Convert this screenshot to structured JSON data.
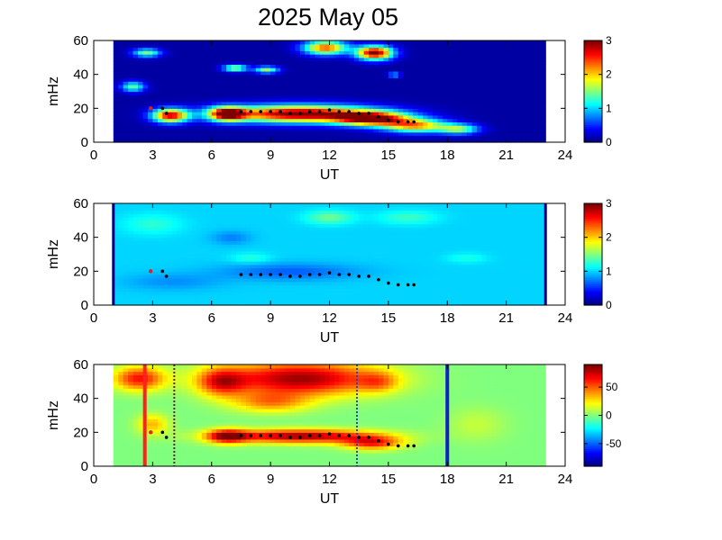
{
  "title": "2025 May 05",
  "colors": {
    "axis": "#000000",
    "background": "#ffffff",
    "red_line": "#ff2020",
    "blue_line": "#1020c8",
    "track_marker": "#000000",
    "first_marker": "#e02020"
  },
  "chart_data": [
    {
      "type": "heatmap",
      "name_hint": "top panel",
      "xlabel": "UT",
      "ylabel": "mHz",
      "xlim": [
        0,
        24
      ],
      "ylim": [
        0,
        60
      ],
      "xticks": [
        "0",
        "3",
        "6",
        "9",
        "12",
        "15",
        "18",
        "21",
        "24"
      ],
      "yticks": [
        "0",
        "20",
        "40",
        "60"
      ],
      "colorbar": {
        "range": [
          0,
          3
        ],
        "ticks": [
          "0",
          "1",
          "2",
          "3"
        ]
      },
      "data_extent_ut": [
        1.0,
        23.0
      ],
      "background_level": 0.1,
      "blobs": [
        {
          "t": 3.9,
          "f": 16,
          "rt": 0.9,
          "rf": 4,
          "v": 2.6
        },
        {
          "t": 2.0,
          "f": 33,
          "rt": 0.6,
          "rf": 3,
          "v": 1.3
        },
        {
          "t": 2.7,
          "f": 53,
          "rt": 0.7,
          "rf": 2.5,
          "v": 1.4
        },
        {
          "t": 6.8,
          "f": 17,
          "rt": 0.9,
          "rf": 4,
          "v": 2.6
        },
        {
          "t": 10.5,
          "f": 17,
          "rt": 3.8,
          "rf": 5,
          "v": 3.0
        },
        {
          "t": 14.2,
          "f": 14,
          "rt": 1.8,
          "rf": 4,
          "v": 2.6
        },
        {
          "t": 16.4,
          "f": 10,
          "rt": 1.6,
          "rf": 4,
          "v": 2.0
        },
        {
          "t": 18.6,
          "f": 8,
          "rt": 1.0,
          "rf": 3,
          "v": 1.4
        },
        {
          "t": 7.2,
          "f": 44,
          "rt": 0.6,
          "rf": 2,
          "v": 1.6
        },
        {
          "t": 8.8,
          "f": 43,
          "rt": 0.6,
          "rf": 2,
          "v": 1.5
        },
        {
          "t": 11.8,
          "f": 56,
          "rt": 1.1,
          "rf": 4,
          "v": 2.3
        },
        {
          "t": 14.3,
          "f": 53,
          "rt": 0.9,
          "rf": 4,
          "v": 3.0
        },
        {
          "t": 15.3,
          "f": 40,
          "rt": 0.3,
          "rf": 1.2,
          "v": 1.2
        }
      ],
      "markers_red": [
        {
          "x": 2.9,
          "y": 20
        }
      ],
      "track": [
        {
          "x": 3.5,
          "y": 20
        },
        {
          "x": 3.7,
          "y": 17
        },
        {
          "x": 7.5,
          "y": 18
        },
        {
          "x": 8.0,
          "y": 18
        },
        {
          "x": 8.5,
          "y": 18
        },
        {
          "x": 9.0,
          "y": 18
        },
        {
          "x": 9.5,
          "y": 18
        },
        {
          "x": 10.0,
          "y": 17
        },
        {
          "x": 10.5,
          "y": 17
        },
        {
          "x": 11.0,
          "y": 18
        },
        {
          "x": 11.5,
          "y": 18
        },
        {
          "x": 12.0,
          "y": 19
        },
        {
          "x": 12.5,
          "y": 18
        },
        {
          "x": 13.0,
          "y": 18
        },
        {
          "x": 13.5,
          "y": 17
        },
        {
          "x": 14.0,
          "y": 17
        },
        {
          "x": 14.5,
          "y": 15
        },
        {
          "x": 15.0,
          "y": 13
        },
        {
          "x": 15.5,
          "y": 12
        },
        {
          "x": 16.0,
          "y": 12
        },
        {
          "x": 16.3,
          "y": 12
        }
      ]
    },
    {
      "type": "heatmap",
      "name_hint": "middle panel",
      "xlabel": "UT",
      "ylabel": "mHz",
      "xlim": [
        0,
        24
      ],
      "ylim": [
        0,
        60
      ],
      "xticks": [
        "0",
        "3",
        "6",
        "9",
        "12",
        "15",
        "18",
        "21",
        "24"
      ],
      "yticks": [
        "0",
        "20",
        "40",
        "60"
      ],
      "colorbar": {
        "range": [
          0,
          3
        ],
        "ticks": [
          "0",
          "1",
          "2",
          "3"
        ]
      },
      "data_extent_ut": [
        1.0,
        23.0
      ],
      "background_level": 1.0,
      "edge_lines_ut": [
        1.0,
        23.0
      ],
      "blobs": [
        {
          "t": 10,
          "f": 20,
          "rt": 3.5,
          "rf": 5,
          "v": -0.35
        },
        {
          "t": 4,
          "f": 14,
          "rt": 2.5,
          "rf": 5,
          "v": -0.2
        },
        {
          "t": 3,
          "f": 48,
          "rt": 1.5,
          "rf": 6,
          "v": 0.25
        },
        {
          "t": 12,
          "f": 52,
          "rt": 1.2,
          "rf": 4,
          "v": 0.45
        },
        {
          "t": 16,
          "f": 52,
          "rt": 1.5,
          "rf": 4,
          "v": 0.3
        },
        {
          "t": 8,
          "f": 28,
          "rt": 1.0,
          "rf": 3,
          "v": 0.25
        },
        {
          "t": 19,
          "f": 28,
          "rt": 1.0,
          "rf": 3,
          "v": 0.2
        },
        {
          "t": 7,
          "f": 40,
          "rt": 1.0,
          "rf": 4,
          "v": -0.25
        }
      ],
      "markers_red": [
        {
          "x": 2.9,
          "y": 20
        }
      ],
      "track": [
        {
          "x": 3.5,
          "y": 20
        },
        {
          "x": 3.7,
          "y": 17
        },
        {
          "x": 7.5,
          "y": 18
        },
        {
          "x": 8.0,
          "y": 18
        },
        {
          "x": 8.5,
          "y": 18
        },
        {
          "x": 9.0,
          "y": 18
        },
        {
          "x": 9.5,
          "y": 18
        },
        {
          "x": 10.0,
          "y": 17
        },
        {
          "x": 10.5,
          "y": 17
        },
        {
          "x": 11.0,
          "y": 18
        },
        {
          "x": 11.5,
          "y": 18
        },
        {
          "x": 12.0,
          "y": 19
        },
        {
          "x": 12.5,
          "y": 18
        },
        {
          "x": 13.0,
          "y": 18
        },
        {
          "x": 13.5,
          "y": 17
        },
        {
          "x": 14.0,
          "y": 17
        },
        {
          "x": 14.5,
          "y": 15
        },
        {
          "x": 15.0,
          "y": 13
        },
        {
          "x": 15.5,
          "y": 12
        },
        {
          "x": 16.0,
          "y": 12
        },
        {
          "x": 16.3,
          "y": 12
        }
      ]
    },
    {
      "type": "heatmap",
      "name_hint": "bottom panel",
      "xlabel": "UT",
      "ylabel": "mHz",
      "xlim": [
        0,
        24
      ],
      "ylim": [
        0,
        60
      ],
      "xticks": [
        "0",
        "3",
        "6",
        "9",
        "12",
        "15",
        "18",
        "21",
        "24"
      ],
      "yticks": [
        "0",
        "20",
        "40",
        "60"
      ],
      "colorbar": {
        "range": [
          -90,
          90
        ],
        "ticks": [
          "50",
          "0",
          "-50"
        ],
        "tick_values": [
          50,
          0,
          -50
        ]
      },
      "data_extent_ut": [
        1.0,
        23.0
      ],
      "background_level": 0,
      "blobs": [
        {
          "t": 10.5,
          "f": 52,
          "rt": 4.0,
          "rf": 10,
          "v": 85
        },
        {
          "t": 9.0,
          "f": 38,
          "rt": 2.0,
          "rf": 6,
          "v": 40
        },
        {
          "t": 6.5,
          "f": 50,
          "rt": 1.2,
          "rf": 8,
          "v": 55
        },
        {
          "t": 10.5,
          "f": 18,
          "rt": 3.8,
          "rf": 4,
          "v": 85
        },
        {
          "t": 6.8,
          "f": 18,
          "rt": 1.0,
          "rf": 4,
          "v": 75
        },
        {
          "t": 14.2,
          "f": 14,
          "rt": 1.5,
          "rf": 4,
          "v": 60
        },
        {
          "t": 2.3,
          "f": 52,
          "rt": 1.3,
          "rf": 7,
          "v": 65
        },
        {
          "t": 3.0,
          "f": 25,
          "rt": 0.8,
          "rf": 6,
          "v": 35
        },
        {
          "t": 14.5,
          "f": 50,
          "rt": 1.0,
          "rf": 6,
          "v": 30
        },
        {
          "t": 19.5,
          "f": 25,
          "rt": 1.5,
          "rf": 10,
          "v": 12
        }
      ],
      "vlines": [
        {
          "x": 2.6,
          "color": "#ff2020",
          "width": 4,
          "dash": ""
        },
        {
          "x": 4.1,
          "color": "#7a1540",
          "width": 2,
          "dash": "2,2"
        },
        {
          "x": 13.4,
          "color": "#3040c8",
          "width": 2,
          "dash": "2,2"
        },
        {
          "x": 18.0,
          "color": "#1020c8",
          "width": 4,
          "dash": ""
        }
      ],
      "markers_red": [
        {
          "x": 2.9,
          "y": 20
        }
      ],
      "track": [
        {
          "x": 3.5,
          "y": 20
        },
        {
          "x": 3.7,
          "y": 17
        },
        {
          "x": 7.5,
          "y": 18
        },
        {
          "x": 8.0,
          "y": 18
        },
        {
          "x": 8.5,
          "y": 18
        },
        {
          "x": 9.0,
          "y": 18
        },
        {
          "x": 9.5,
          "y": 18
        },
        {
          "x": 10.0,
          "y": 17
        },
        {
          "x": 10.5,
          "y": 17
        },
        {
          "x": 11.0,
          "y": 18
        },
        {
          "x": 11.5,
          "y": 18
        },
        {
          "x": 12.0,
          "y": 19
        },
        {
          "x": 12.5,
          "y": 18
        },
        {
          "x": 13.0,
          "y": 18
        },
        {
          "x": 13.5,
          "y": 17
        },
        {
          "x": 14.0,
          "y": 17
        },
        {
          "x": 14.5,
          "y": 15
        },
        {
          "x": 15.0,
          "y": 13
        },
        {
          "x": 15.5,
          "y": 12
        },
        {
          "x": 16.0,
          "y": 12
        },
        {
          "x": 16.3,
          "y": 12
        }
      ]
    }
  ]
}
